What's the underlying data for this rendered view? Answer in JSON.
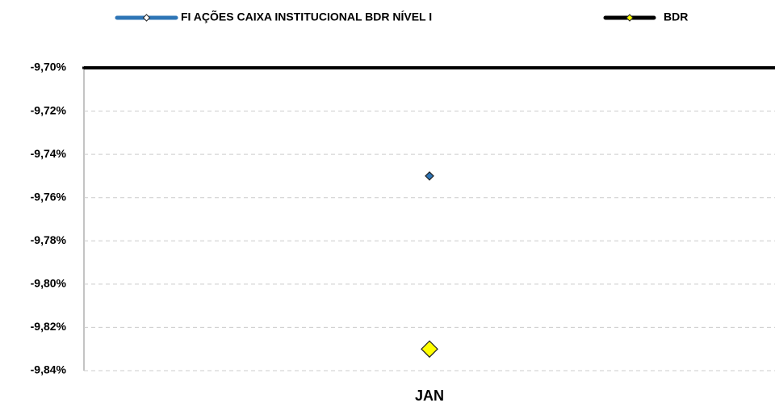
{
  "chart_data": {
    "type": "line",
    "categories": [
      "JAN"
    ],
    "series": [
      {
        "name": "FI AÇÕES CAIXA INSTITUCIONAL BDR NÍVEL I",
        "color": "#2e75b6",
        "marker_color": "#2e75b6",
        "values": [
          -9.75
        ]
      },
      {
        "name": "BDR",
        "color": "#000000",
        "marker_color": "#ffff00",
        "values": [
          -9.83
        ]
      }
    ],
    "ylim": [
      -9.84,
      -9.7
    ],
    "yticks": [
      {
        "value": -9.7,
        "label": "-9,70%"
      },
      {
        "value": -9.72,
        "label": "-9,72%"
      },
      {
        "value": -9.74,
        "label": "-9,74%"
      },
      {
        "value": -9.76,
        "label": "-9,76%"
      },
      {
        "value": -9.78,
        "label": "-9,78%"
      },
      {
        "value": -9.8,
        "label": "-9,80%"
      },
      {
        "value": -9.82,
        "label": "-9,82%"
      },
      {
        "value": -9.84,
        "label": "-9,84%"
      }
    ],
    "grid": true,
    "legend": "top"
  }
}
